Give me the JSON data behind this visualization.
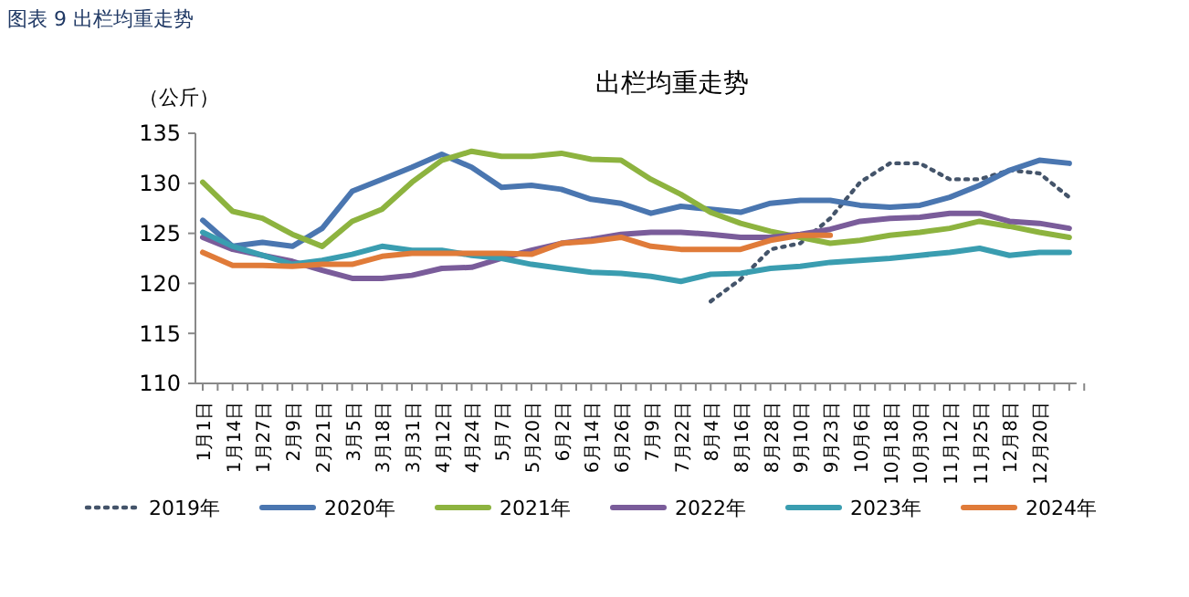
{
  "chart_data": {
    "type": "line",
    "title": "出栏均重走势",
    "ylabel": "（公斤）",
    "annotations": [
      "图表 9  出栏均重走势"
    ],
    "categories": [
      "1月1日",
      "1月14日",
      "1月27日",
      "2月9日",
      "2月21日",
      "3月5日",
      "3月18日",
      "3月31日",
      "4月12日",
      "4月24日",
      "5月7日",
      "5月20日",
      "6月2日",
      "6月14日",
      "6月26日",
      "7月9日",
      "7月22日",
      "8月4日",
      "8月16日",
      "8月28日",
      "9月10日",
      "9月23日",
      "10月6日",
      "10月18日",
      "10月30日",
      "11月12日",
      "11月25日",
      "12月8日",
      "12月20日",
      null
    ],
    "ylim": [
      110,
      135
    ],
    "yticks": [
      110,
      115,
      120,
      125,
      130,
      135
    ],
    "grid": false,
    "legend": "bottom",
    "marker": "none",
    "series": [
      {
        "name": "2019年",
        "color": "#44546a",
        "line_style": "dotted",
        "values": [
          null,
          null,
          null,
          null,
          null,
          null,
          null,
          null,
          null,
          null,
          null,
          null,
          null,
          null,
          null,
          null,
          null,
          118.2,
          120.4,
          123.4,
          124,
          126.5,
          130.1,
          132,
          132,
          130.4,
          130.4,
          131.3,
          131,
          128.6
        ]
      },
      {
        "name": "2020年",
        "color": "#4a76b0",
        "line_style": "solid",
        "values": [
          126.3,
          123.7,
          124.1,
          123.7,
          125.5,
          129.2,
          130.4,
          131.6,
          132.9,
          131.6,
          129.6,
          129.8,
          129.4,
          128.4,
          128,
          127,
          127.7,
          127.4,
          127.1,
          128,
          128.3,
          128.3,
          127.8,
          127.6,
          127.8,
          128.6,
          129.8,
          131.3,
          132.3,
          132
        ]
      },
      {
        "name": "2021年",
        "color": "#8db33f",
        "line_style": "solid",
        "values": [
          130.1,
          127.2,
          126.5,
          124.9,
          123.7,
          126.2,
          127.4,
          130.1,
          132.3,
          133.2,
          132.7,
          132.7,
          133,
          132.4,
          132.3,
          130.4,
          128.9,
          127.1,
          126,
          125.2,
          124.6,
          124,
          124.3,
          124.8,
          125.1,
          125.5,
          126.2,
          125.7,
          125.1,
          124.6
        ]
      },
      {
        "name": "2022年",
        "color": "#7a5c9a",
        "line_style": "solid",
        "values": [
          124.6,
          123.4,
          122.8,
          122.2,
          121.3,
          120.5,
          120.5,
          120.8,
          121.5,
          121.6,
          122.5,
          123.3,
          124,
          124.4,
          124.9,
          125.1,
          125.1,
          124.9,
          124.6,
          124.6,
          124.9,
          125.4,
          126.2,
          126.5,
          126.6,
          127,
          127,
          126.2,
          126,
          125.5
        ]
      },
      {
        "name": "2023年",
        "color": "#3a9db0",
        "line_style": "solid",
        "values": [
          125.1,
          123.7,
          122.8,
          121.9,
          122.3,
          122.9,
          123.7,
          123.3,
          123.3,
          122.8,
          122.5,
          121.9,
          121.5,
          121.1,
          121,
          120.7,
          120.2,
          120.9,
          121,
          121.5,
          121.7,
          122.1,
          122.3,
          122.5,
          122.8,
          123.1,
          123.5,
          122.8,
          123.1,
          123.1
        ]
      },
      {
        "name": "2024年",
        "color": "#e07b39",
        "line_style": "solid",
        "values": [
          123.1,
          121.8,
          121.8,
          121.7,
          121.9,
          121.9,
          122.7,
          123,
          123,
          123,
          123,
          122.9,
          124,
          124.2,
          124.6,
          123.7,
          123.4,
          123.4,
          123.4,
          124.3,
          124.8,
          124.8,
          null,
          null,
          null,
          null,
          null,
          null,
          null,
          null
        ]
      }
    ]
  }
}
